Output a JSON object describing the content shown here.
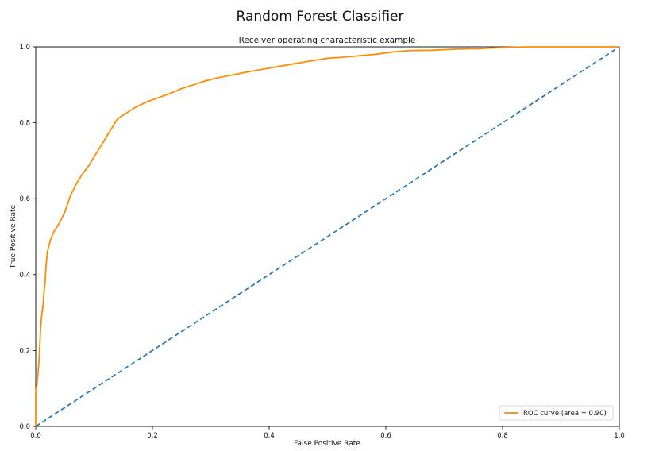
{
  "figure": {
    "suptitle": "Random Forest Classifier"
  },
  "chart_data": {
    "type": "line",
    "title": "Receiver operating characteristic example",
    "xlabel": "False Positive Rate",
    "ylabel": "True Positive Rate",
    "xlim": [
      0.0,
      1.0
    ],
    "ylim": [
      0.0,
      1.0
    ],
    "xticks": [
      "0.0",
      "0.2",
      "0.4",
      "0.6",
      "0.8",
      "1.0"
    ],
    "yticks": [
      "0.0",
      "0.2",
      "0.4",
      "0.6",
      "0.8",
      "1.0"
    ],
    "grid": false,
    "legend_position": "lower right",
    "series": [
      {
        "name": "ROC curve (area = 0.90)",
        "color": "#ff8c00",
        "style": "solid",
        "x": [
          0.0,
          0.0,
          0.002,
          0.004,
          0.006,
          0.008,
          0.01,
          0.012,
          0.014,
          0.016,
          0.018,
          0.02,
          0.025,
          0.03,
          0.04,
          0.05,
          0.06,
          0.07,
          0.08,
          0.09,
          0.1,
          0.11,
          0.12,
          0.13,
          0.14,
          0.15,
          0.155,
          0.17,
          0.19,
          0.21,
          0.23,
          0.25,
          0.27,
          0.29,
          0.31,
          0.33,
          0.36,
          0.4,
          0.43,
          0.46,
          0.48,
          0.5,
          0.51,
          0.53,
          0.55,
          0.58,
          0.61,
          0.64,
          0.68,
          0.72,
          0.76,
          0.78,
          0.8,
          0.82,
          0.84,
          1.0
        ],
        "y": [
          0.0,
          0.09,
          0.11,
          0.14,
          0.18,
          0.25,
          0.29,
          0.31,
          0.35,
          0.38,
          0.43,
          0.46,
          0.49,
          0.51,
          0.535,
          0.565,
          0.61,
          0.64,
          0.665,
          0.685,
          0.71,
          0.735,
          0.76,
          0.785,
          0.81,
          0.82,
          0.825,
          0.84,
          0.855,
          0.866,
          0.877,
          0.89,
          0.9,
          0.91,
          0.918,
          0.924,
          0.933,
          0.944,
          0.952,
          0.96,
          0.965,
          0.97,
          0.971,
          0.973,
          0.976,
          0.98,
          0.986,
          0.99,
          0.991,
          0.994,
          0.995,
          0.997,
          0.998,
          0.999,
          1.0,
          1.0
        ]
      },
      {
        "name": "",
        "color": "#1f77b4",
        "style": "dashed",
        "x": [
          0.0,
          1.0
        ],
        "y": [
          0.0,
          1.0
        ]
      }
    ]
  }
}
